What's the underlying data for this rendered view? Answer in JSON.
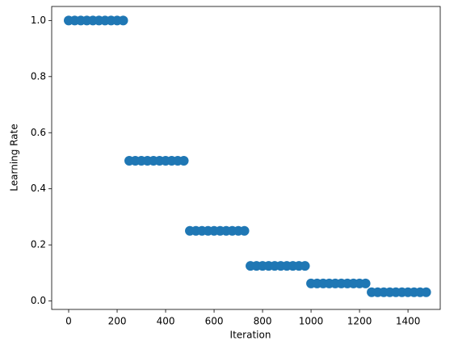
{
  "chart_data": {
    "type": "scatter",
    "xlabel": "Iteration",
    "ylabel": "Learning Rate",
    "series": [
      {
        "color": "#1f77b4",
        "x": [
          0,
          25,
          50,
          75,
          100,
          125,
          150,
          175,
          200,
          225,
          250,
          275,
          300,
          325,
          350,
          375,
          400,
          425,
          450,
          475,
          500,
          525,
          550,
          575,
          600,
          625,
          650,
          675,
          700,
          725,
          750,
          775,
          800,
          825,
          850,
          875,
          900,
          925,
          950,
          975,
          1000,
          1025,
          1050,
          1075,
          1100,
          1125,
          1150,
          1175,
          1200,
          1225,
          1250,
          1275,
          1300,
          1325,
          1350,
          1375,
          1400,
          1425,
          1450,
          1475
        ],
        "values": [
          1,
          1,
          1,
          1,
          1,
          1,
          1,
          1,
          1,
          1,
          0.5,
          0.5,
          0.5,
          0.5,
          0.5,
          0.5,
          0.5,
          0.5,
          0.5,
          0.5,
          0.25,
          0.25,
          0.25,
          0.25,
          0.25,
          0.25,
          0.25,
          0.25,
          0.25,
          0.25,
          0.125,
          0.125,
          0.125,
          0.125,
          0.125,
          0.125,
          0.125,
          0.125,
          0.125,
          0.125,
          0.0625,
          0.0625,
          0.0625,
          0.0625,
          0.0625,
          0.0625,
          0.0625,
          0.0625,
          0.0625,
          0.0625,
          0.03125,
          0.03125,
          0.03125,
          0.03125,
          0.03125,
          0.03125,
          0.03125,
          0.03125,
          0.03125,
          0.03125
        ]
      }
    ],
    "xlim": [
      -70,
      1533
    ],
    "xticks": [
      0,
      200,
      400,
      600,
      800,
      1000,
      1200,
      1400
    ],
    "ylim": [
      -0.03,
      1.05
    ],
    "yticks": [
      {
        "value": 0,
        "label": "0.0"
      },
      0.2,
      0.4,
      0.6,
      0.8,
      {
        "value": 1,
        "label": "1.0"
      }
    ],
    "grid": false
  }
}
